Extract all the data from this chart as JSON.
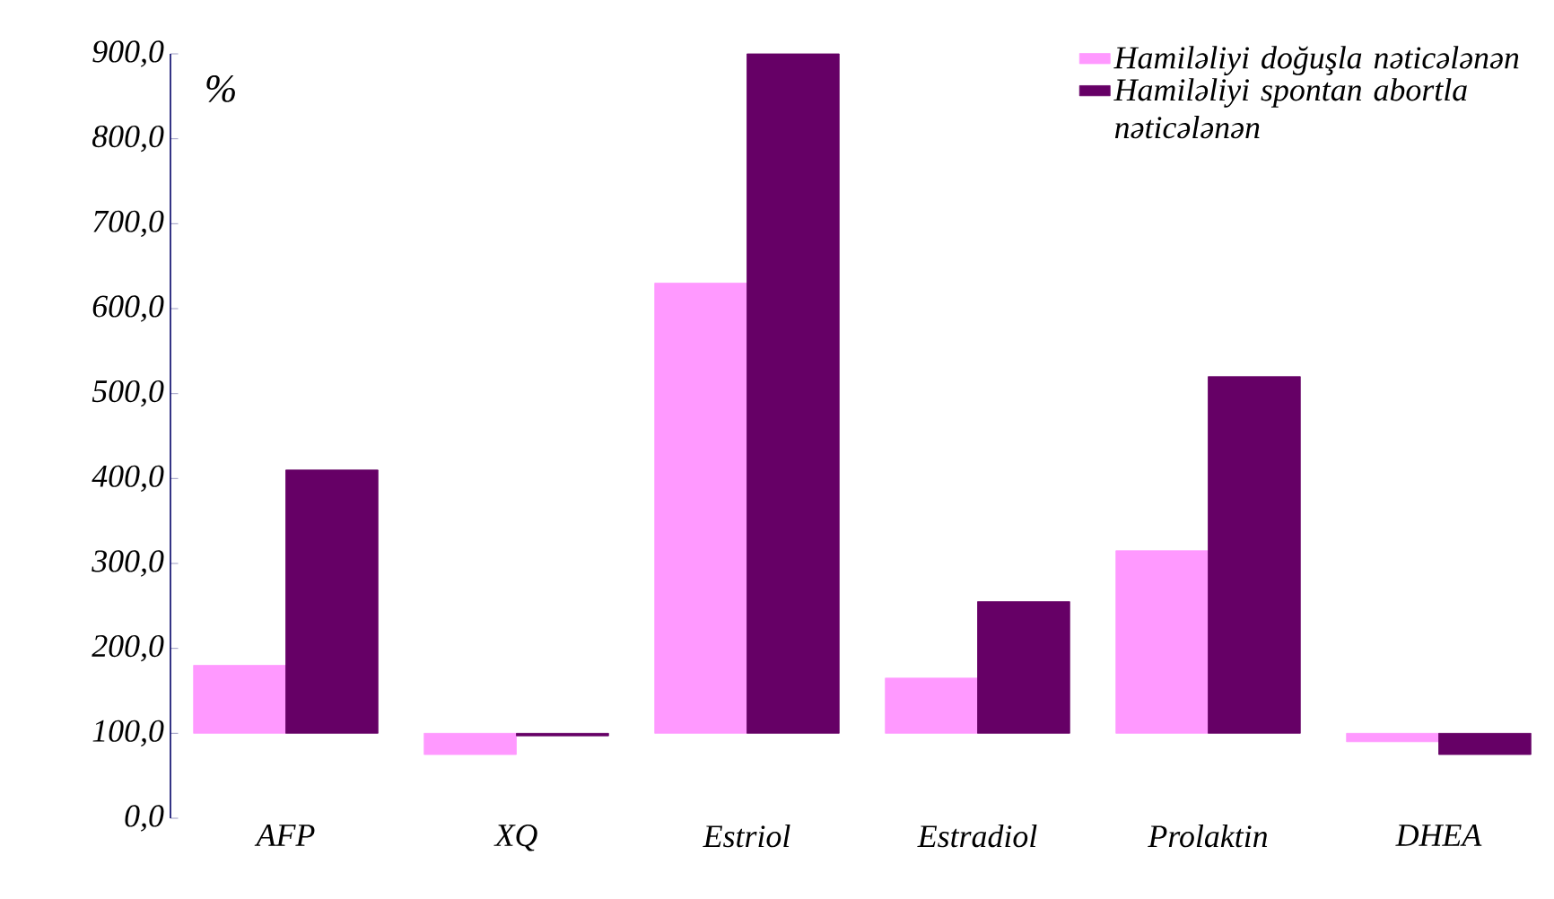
{
  "chart_data": {
    "type": "bar",
    "ylabel": "%",
    "categories": [
      "AFP",
      "XQ",
      "Estriol",
      "Estradiol",
      "Prolaktin",
      "DHEA"
    ],
    "series": [
      {
        "name": "Hamiləliyi doğuşla nəticələnən",
        "color": "#ff99ff",
        "base": [
          100,
          100,
          100,
          100,
          100,
          100
        ],
        "values": [
          80,
          -25,
          530,
          65,
          215,
          -10
        ]
      },
      {
        "name": "Hamiləliyi spontan abortla nəticələnən",
        "color": "#660066",
        "base": [
          100,
          100,
          100,
          100,
          100,
          100
        ],
        "values": [
          310,
          -3,
          800,
          155,
          420,
          -25
        ]
      }
    ],
    "ylim": [
      0,
      900
    ],
    "yticks": [
      {
        "value": 0,
        "label": "0,0"
      },
      {
        "value": 100,
        "label": "100,0"
      },
      {
        "value": 200,
        "label": "200,0"
      },
      {
        "value": 300,
        "label": "300,0"
      },
      {
        "value": 400,
        "label": "400,0"
      },
      {
        "value": 500,
        "label": "500,0"
      },
      {
        "value": 600,
        "label": "600,0"
      },
      {
        "value": 700,
        "label": "700,0"
      },
      {
        "value": 800,
        "label": "800,0"
      },
      {
        "value": 900,
        "label": "900,0"
      }
    ],
    "grid": false,
    "legend": "top right"
  }
}
